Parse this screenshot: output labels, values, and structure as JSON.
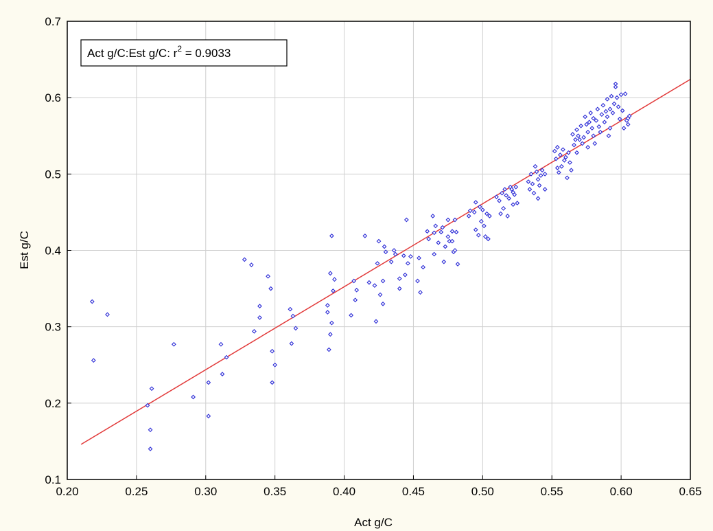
{
  "chart_data": {
    "type": "scatter",
    "xlabel": "Act g/C",
    "ylabel": "Est g/C",
    "xlim": [
      0.2,
      0.65
    ],
    "ylim": [
      0.1,
      0.7
    ],
    "xticks": [
      "0.20",
      "0.25",
      "0.30",
      "0.35",
      "0.40",
      "0.45",
      "0.50",
      "0.55",
      "0.60",
      "0.65"
    ],
    "yticks": [
      "0.1",
      "0.2",
      "0.3",
      "0.4",
      "0.5",
      "0.6",
      "0.7"
    ],
    "grid": true,
    "legend": {
      "position": "top-left",
      "prefix": "Act g/C:Est g/C:  r",
      "superscript": "2",
      "suffix": " = 0.9033"
    },
    "fit_line": {
      "x": [
        0.21,
        0.65
      ],
      "y": [
        0.146,
        0.624
      ]
    },
    "colors": {
      "points": "#2b2bd6",
      "fit_line": "#e23a3a",
      "grid": "#cfcfcf",
      "plot_bg": "#ffffff",
      "page_bg": "#fdfbf0"
    },
    "series": [
      {
        "points": [
          [
            0.218,
            0.333
          ],
          [
            0.219,
            0.256
          ],
          [
            0.229,
            0.316
          ],
          [
            0.258,
            0.197
          ],
          [
            0.26,
            0.165
          ],
          [
            0.26,
            0.14
          ],
          [
            0.261,
            0.219
          ],
          [
            0.277,
            0.277
          ],
          [
            0.291,
            0.208
          ],
          [
            0.302,
            0.227
          ],
          [
            0.302,
            0.183
          ],
          [
            0.311,
            0.277
          ],
          [
            0.312,
            0.238
          ],
          [
            0.315,
            0.26
          ],
          [
            0.328,
            0.388
          ],
          [
            0.333,
            0.381
          ],
          [
            0.335,
            0.294
          ],
          [
            0.339,
            0.327
          ],
          [
            0.339,
            0.312
          ],
          [
            0.345,
            0.366
          ],
          [
            0.347,
            0.35
          ],
          [
            0.348,
            0.268
          ],
          [
            0.348,
            0.227
          ],
          [
            0.35,
            0.25
          ],
          [
            0.361,
            0.323
          ],
          [
            0.362,
            0.278
          ],
          [
            0.363,
            0.314
          ],
          [
            0.365,
            0.298
          ],
          [
            0.388,
            0.328
          ],
          [
            0.388,
            0.319
          ],
          [
            0.389,
            0.27
          ],
          [
            0.39,
            0.37
          ],
          [
            0.39,
            0.29
          ],
          [
            0.391,
            0.419
          ],
          [
            0.391,
            0.305
          ],
          [
            0.392,
            0.347
          ],
          [
            0.393,
            0.362
          ],
          [
            0.405,
            0.315
          ],
          [
            0.407,
            0.36
          ],
          [
            0.408,
            0.335
          ],
          [
            0.409,
            0.348
          ],
          [
            0.415,
            0.419
          ],
          [
            0.418,
            0.358
          ],
          [
            0.422,
            0.354
          ],
          [
            0.423,
            0.307
          ],
          [
            0.424,
            0.383
          ],
          [
            0.425,
            0.412
          ],
          [
            0.426,
            0.342
          ],
          [
            0.428,
            0.36
          ],
          [
            0.428,
            0.33
          ],
          [
            0.429,
            0.405
          ],
          [
            0.43,
            0.398
          ],
          [
            0.434,
            0.385
          ],
          [
            0.436,
            0.4
          ],
          [
            0.437,
            0.395
          ],
          [
            0.44,
            0.363
          ],
          [
            0.44,
            0.35
          ],
          [
            0.443,
            0.393
          ],
          [
            0.444,
            0.368
          ],
          [
            0.445,
            0.44
          ],
          [
            0.446,
            0.383
          ],
          [
            0.448,
            0.392
          ],
          [
            0.453,
            0.36
          ],
          [
            0.454,
            0.39
          ],
          [
            0.455,
            0.345
          ],
          [
            0.457,
            0.378
          ],
          [
            0.46,
            0.425
          ],
          [
            0.461,
            0.415
          ],
          [
            0.464,
            0.445
          ],
          [
            0.465,
            0.423
          ],
          [
            0.465,
            0.395
          ],
          [
            0.466,
            0.432
          ],
          [
            0.468,
            0.41
          ],
          [
            0.47,
            0.424
          ],
          [
            0.471,
            0.43
          ],
          [
            0.472,
            0.385
          ],
          [
            0.473,
            0.405
          ],
          [
            0.475,
            0.44
          ],
          [
            0.475,
            0.418
          ],
          [
            0.476,
            0.412
          ],
          [
            0.478,
            0.425
          ],
          [
            0.478,
            0.412
          ],
          [
            0.479,
            0.398
          ],
          [
            0.48,
            0.4
          ],
          [
            0.48,
            0.44
          ],
          [
            0.481,
            0.424
          ],
          [
            0.482,
            0.382
          ],
          [
            0.49,
            0.445
          ],
          [
            0.491,
            0.452
          ],
          [
            0.494,
            0.45
          ],
          [
            0.495,
            0.463
          ],
          [
            0.495,
            0.427
          ],
          [
            0.497,
            0.42
          ],
          [
            0.498,
            0.457
          ],
          [
            0.499,
            0.438
          ],
          [
            0.5,
            0.453
          ],
          [
            0.501,
            0.432
          ],
          [
            0.502,
            0.418
          ],
          [
            0.503,
            0.448
          ],
          [
            0.504,
            0.415
          ],
          [
            0.505,
            0.445
          ],
          [
            0.51,
            0.47
          ],
          [
            0.512,
            0.465
          ],
          [
            0.513,
            0.448
          ],
          [
            0.514,
            0.475
          ],
          [
            0.515,
            0.455
          ],
          [
            0.516,
            0.48
          ],
          [
            0.517,
            0.472
          ],
          [
            0.518,
            0.445
          ],
          [
            0.519,
            0.468
          ],
          [
            0.52,
            0.483
          ],
          [
            0.521,
            0.48
          ],
          [
            0.522,
            0.476
          ],
          [
            0.522,
            0.46
          ],
          [
            0.523,
            0.473
          ],
          [
            0.524,
            0.483
          ],
          [
            0.525,
            0.462
          ],
          [
            0.533,
            0.49
          ],
          [
            0.534,
            0.48
          ],
          [
            0.535,
            0.5
          ],
          [
            0.536,
            0.487
          ],
          [
            0.537,
            0.475
          ],
          [
            0.538,
            0.51
          ],
          [
            0.539,
            0.503
          ],
          [
            0.54,
            0.493
          ],
          [
            0.54,
            0.468
          ],
          [
            0.541,
            0.485
          ],
          [
            0.542,
            0.498
          ],
          [
            0.543,
            0.505
          ],
          [
            0.545,
            0.5
          ],
          [
            0.545,
            0.48
          ],
          [
            0.552,
            0.53
          ],
          [
            0.553,
            0.52
          ],
          [
            0.554,
            0.508
          ],
          [
            0.554,
            0.535
          ],
          [
            0.555,
            0.502
          ],
          [
            0.556,
            0.525
          ],
          [
            0.557,
            0.51
          ],
          [
            0.558,
            0.532
          ],
          [
            0.559,
            0.518
          ],
          [
            0.56,
            0.522
          ],
          [
            0.561,
            0.495
          ],
          [
            0.562,
            0.528
          ],
          [
            0.563,
            0.515
          ],
          [
            0.564,
            0.505
          ],
          [
            0.565,
            0.552
          ],
          [
            0.566,
            0.538
          ],
          [
            0.567,
            0.545
          ],
          [
            0.568,
            0.558
          ],
          [
            0.568,
            0.528
          ],
          [
            0.569,
            0.55
          ],
          [
            0.57,
            0.545
          ],
          [
            0.571,
            0.563
          ],
          [
            0.572,
            0.54
          ],
          [
            0.573,
            0.548
          ],
          [
            0.574,
            0.575
          ],
          [
            0.575,
            0.565
          ],
          [
            0.576,
            0.555
          ],
          [
            0.576,
            0.535
          ],
          [
            0.577,
            0.568
          ],
          [
            0.578,
            0.58
          ],
          [
            0.579,
            0.56
          ],
          [
            0.58,
            0.55
          ],
          [
            0.58,
            0.573
          ],
          [
            0.581,
            0.54
          ],
          [
            0.582,
            0.57
          ],
          [
            0.583,
            0.585
          ],
          [
            0.584,
            0.562
          ],
          [
            0.585,
            0.555
          ],
          [
            0.586,
            0.578
          ],
          [
            0.587,
            0.59
          ],
          [
            0.588,
            0.568
          ],
          [
            0.589,
            0.582
          ],
          [
            0.59,
            0.575
          ],
          [
            0.59,
            0.598
          ],
          [
            0.591,
            0.55
          ],
          [
            0.592,
            0.585
          ],
          [
            0.592,
            0.56
          ],
          [
            0.593,
            0.602
          ],
          [
            0.594,
            0.58
          ],
          [
            0.595,
            0.592
          ],
          [
            0.596,
            0.618
          ],
          [
            0.596,
            0.614
          ],
          [
            0.597,
            0.6
          ],
          [
            0.598,
            0.588
          ],
          [
            0.599,
            0.572
          ],
          [
            0.6,
            0.604
          ],
          [
            0.601,
            0.583
          ],
          [
            0.602,
            0.56
          ],
          [
            0.603,
            0.605
          ],
          [
            0.604,
            0.57
          ],
          [
            0.605,
            0.565
          ],
          [
            0.605,
            0.573
          ],
          [
            0.606,
            0.576
          ]
        ]
      }
    ]
  }
}
